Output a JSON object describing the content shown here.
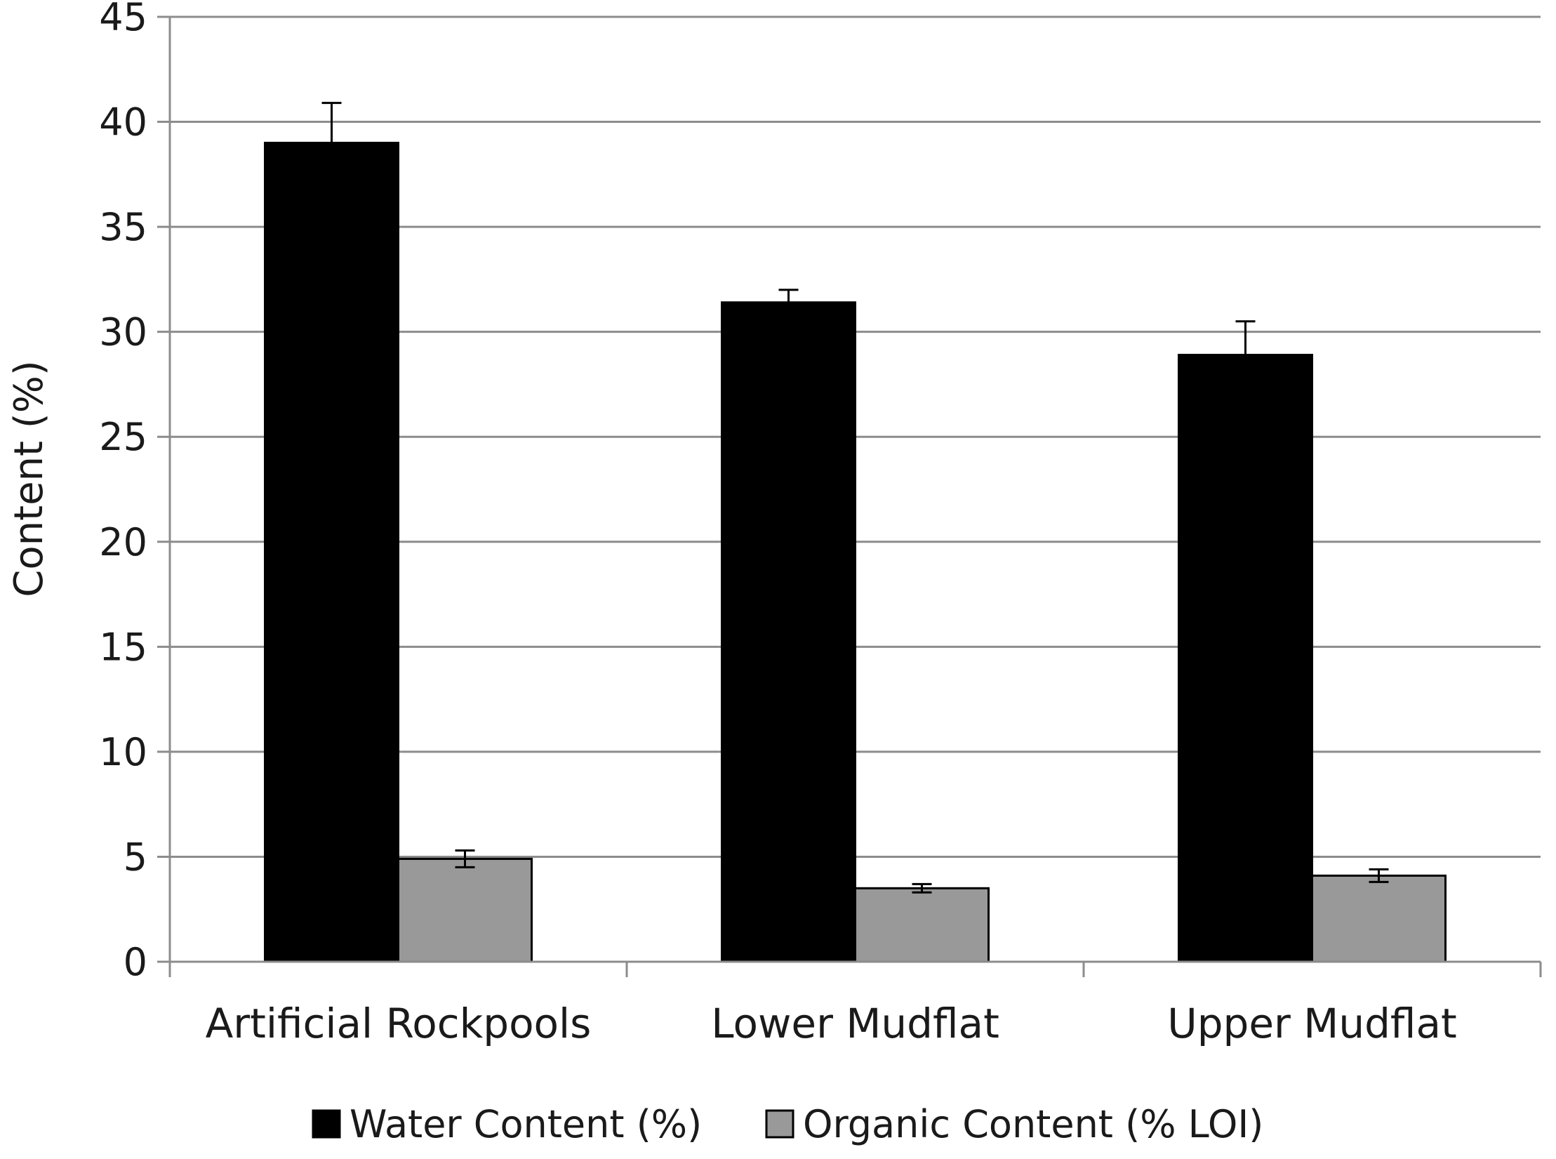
{
  "chart_data": {
    "type": "bar",
    "title": "",
    "xlabel": "",
    "ylabel": "Content (%)",
    "ylim": [
      0,
      45
    ],
    "yticks": [
      0,
      5,
      10,
      15,
      20,
      25,
      30,
      35,
      40,
      45
    ],
    "grid": true,
    "legend_position": "bottom",
    "categories": [
      "Artificial Rockpools",
      "Lower Mudflat",
      "Upper Mudflat"
    ],
    "series": [
      {
        "name": "Water Content (%)",
        "color": "#000000",
        "values": [
          39.0,
          31.4,
          28.9
        ],
        "errors": [
          1.9,
          0.6,
          1.6
        ]
      },
      {
        "name": "Organic Content (% LOI)",
        "color": "#999999",
        "values": [
          4.9,
          3.5,
          4.1
        ],
        "errors": [
          0.4,
          0.2,
          0.3
        ]
      }
    ]
  }
}
